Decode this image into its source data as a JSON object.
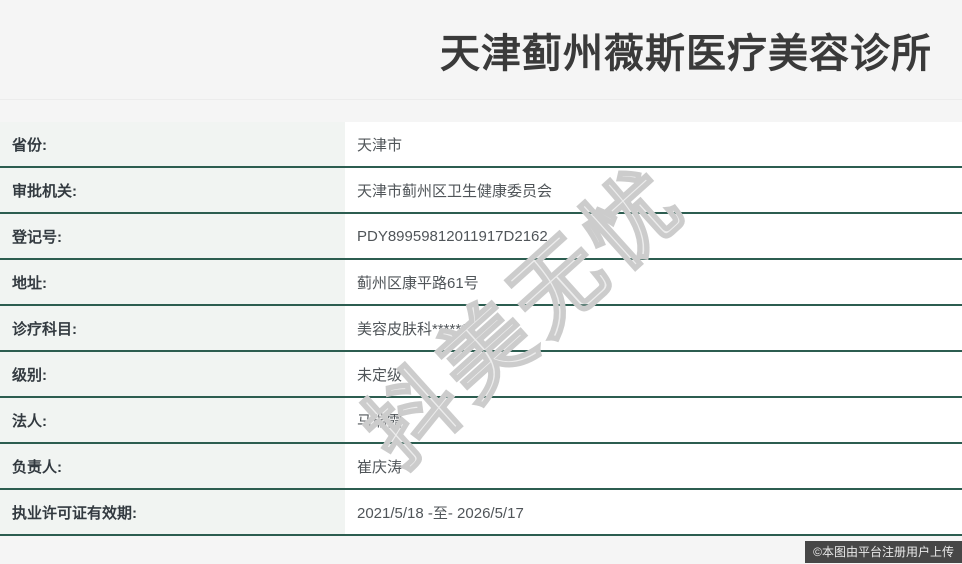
{
  "page": {
    "title": "天津蓟州薇斯医疗美容诊所",
    "watermark": "抖美无忧",
    "footer_badge": "©本图由平台注册用户上传"
  },
  "colors": {
    "divider_green": "#2c5d50",
    "header_bg": "#f5f5f5",
    "label_bg": "#f1f4f2",
    "value_bg": "#ffffff",
    "title_text": "#3a3a3a",
    "label_text": "#333a40",
    "value_text": "#505559",
    "watermark_color": "#cccccc",
    "badge_bg": "#303030",
    "badge_text": "#e9e9e9"
  },
  "table": {
    "rows": [
      {
        "label": "省份:",
        "value": "天津市"
      },
      {
        "label": "审批机关:",
        "value": "天津市蓟州区卫生健康委员会"
      },
      {
        "label": "登记号:",
        "value": "PDY89959812011917D2162"
      },
      {
        "label": "地址:",
        "value": "蓟州区康平路61号"
      },
      {
        "label": "诊疗科目:",
        "value": "美容皮肤科******"
      },
      {
        "label": "级别:",
        "value": "未定级"
      },
      {
        "label": "法人:",
        "value": "马瑞霞"
      },
      {
        "label": "负责人:",
        "value": "崔庆涛"
      },
      {
        "label": "执业许可证有效期:",
        "value": "2021/5/18 -至- 2026/5/17"
      }
    ]
  }
}
